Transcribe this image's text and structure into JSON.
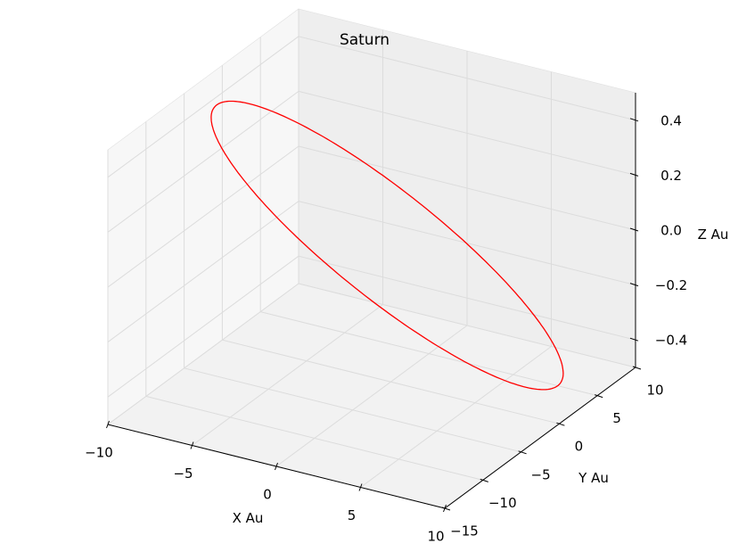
{
  "chart_data": {
    "type": "line",
    "projection": "3d",
    "title": "Saturn",
    "xlabel": "X Au",
    "ylabel": "Y Au",
    "zlabel": "Z Au",
    "xlim": [
      -10,
      10
    ],
    "ylim": [
      -15,
      10
    ],
    "zlim": [
      -0.5,
      0.5
    ],
    "x_ticks": [
      -10,
      -5,
      0,
      5,
      10
    ],
    "y_ticks": [
      -15,
      -10,
      -5,
      0,
      5,
      10
    ],
    "z_ticks": [
      -0.4,
      -0.2,
      0.0,
      0.2,
      0.4
    ],
    "x_tick_labels": [
      "−10",
      "−5",
      "0",
      "5",
      "10"
    ],
    "y_tick_labels": [
      "−15",
      "−10",
      "−5",
      "0",
      "5",
      "10"
    ],
    "z_tick_labels": [
      "−0.4",
      "−0.2",
      "0.0",
      "0.2",
      "0.4"
    ],
    "grid": true,
    "series": [
      {
        "color": "#ff0000",
        "orbit": {
          "semi_major_axis": 9.54,
          "eccentricity": 0.056,
          "inclination_deg": 2.49,
          "longitude_ascending_node_deg": 113.7,
          "argument_perihelion_deg": 339.4,
          "points": 240
        }
      }
    ]
  }
}
